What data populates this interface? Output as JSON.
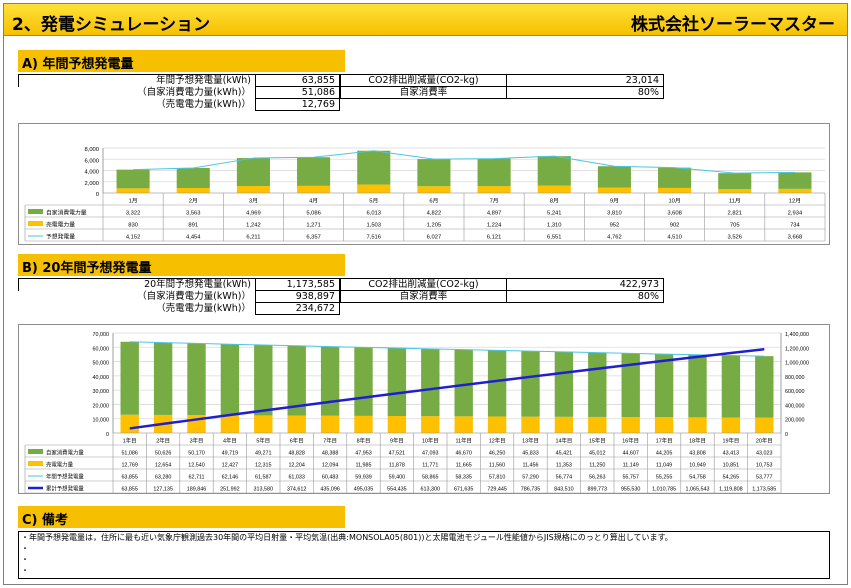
{
  "header": {
    "title": "2、発電シミュレーション",
    "company": "株式会社ソーラーマスター"
  },
  "section_a": {
    "label": "A) 年間予想発電量",
    "rows": [
      {
        "label": "年間予想発電量(kWh)",
        "value": "63,855",
        "label2": "CO2排出削減量(CO2-kg)",
        "value2": "23,014"
      },
      {
        "label": "（自家消費電力量(kWh)）",
        "value": "51,086",
        "label2": "自家消費率",
        "value2": "80%"
      },
      {
        "label": "（売電電力量(kWh)）",
        "value": "12,769"
      }
    ]
  },
  "section_b": {
    "label": "B) 20年間予想発電量",
    "rows": [
      {
        "label": "20年間予想発電量(kWh)",
        "value": "1,173,585",
        "label2": "CO2排出削減量(CO2-kg)",
        "value2": "422,973"
      },
      {
        "label": "（自家消費電力量(kWh)）",
        "value": "938,897",
        "label2": "自家消費率",
        "value2": "80%"
      },
      {
        "label": "（売電電力量(kWh)）",
        "value": "234,672"
      }
    ]
  },
  "section_c": {
    "label": "C) 備考",
    "notes": [
      "・年間予想発電量は，住所に最も近い気象庁観測過去30年間の平均日射量・平均気温(出典:MONSOLA05(801))と太陽電池モジュール性能値からJIS規格にのっとり算出しています。",
      "・",
      "・",
      "・"
    ]
  },
  "chart_data": [
    {
      "type": "bar",
      "categories": [
        "1月",
        "2月",
        "3月",
        "4月",
        "5月",
        "6月",
        "7月",
        "8月",
        "9月",
        "10月",
        "11月",
        "12月"
      ],
      "ylim": [
        0,
        8000
      ],
      "yticks": [
        "0",
        "2,000",
        "4,000",
        "6,000",
        "8,000"
      ],
      "series": [
        {
          "name": "自家消費電力量",
          "color": "#77ab43",
          "values": [
            3322,
            3563,
            4969,
            5086,
            6013,
            4822,
            4897,
            5241,
            3810,
            3608,
            2821,
            2934
          ],
          "labels": [
            "3,322",
            "3,563",
            "4,969",
            "5,086",
            "6,013",
            "4,822",
            "4,897",
            "5,241",
            "3,810",
            "3,608",
            "2,821",
            "2,934"
          ]
        },
        {
          "name": "売電電力量",
          "color": "#ffc000",
          "values": [
            830,
            891,
            1242,
            1271,
            1503,
            1205,
            1224,
            1310,
            952,
            902,
            705,
            734
          ],
          "labels": [
            "830",
            "891",
            "1,242",
            "1,271",
            "1,503",
            "1,205",
            "1,224",
            "1,310",
            "952",
            "902",
            "705",
            "734"
          ]
        },
        {
          "name": "予想発電量",
          "color": "#4bc6e0",
          "values": [
            4152,
            4454,
            6211,
            6357,
            7516,
            6027,
            6121,
            6551,
            4762,
            4510,
            3526,
            3668
          ],
          "labels": [
            "4,152",
            "4,454",
            "6,211",
            "6,357",
            "7,516",
            "6,027",
            "6,121",
            "6,551",
            "4,762",
            "4,510",
            "3,526",
            "3,668"
          ]
        }
      ]
    },
    {
      "type": "bar",
      "categories": [
        "1年目",
        "2年目",
        "3年目",
        "4年目",
        "5年目",
        "6年目",
        "7年目",
        "8年目",
        "9年目",
        "10年目",
        "11年目",
        "12年目",
        "13年目",
        "14年目",
        "15年目",
        "16年目",
        "17年目",
        "18年目",
        "19年目",
        "20年目"
      ],
      "ylim": [
        0,
        70000
      ],
      "y2lim": [
        0,
        1400000
      ],
      "yticks": [
        "0",
        "10,000",
        "20,000",
        "30,000",
        "40,000",
        "50,000",
        "60,000",
        "70,000"
      ],
      "y2ticks": [
        "0",
        "200,000",
        "400,000",
        "600,000",
        "800,000",
        "1,000,000",
        "1,200,000",
        "1,400,000"
      ],
      "series": [
        {
          "name": "自家消費電力量",
          "color": "#77ab43",
          "values": [
            51086,
            50626,
            50170,
            49719,
            49271,
            48828,
            48388,
            47953,
            47521,
            47093,
            46670,
            46250,
            45833,
            45421,
            45012,
            44607,
            44205,
            43808,
            43413,
            43023
          ],
          "labels": [
            "51,086",
            "50,626",
            "50,170",
            "49,719",
            "49,271",
            "48,828",
            "48,388",
            "47,953",
            "47,521",
            "47,093",
            "46,670",
            "46,250",
            "45,833",
            "45,421",
            "45,012",
            "44,607",
            "44,205",
            "43,808",
            "43,413",
            "43,023"
          ]
        },
        {
          "name": "売電電力量",
          "color": "#ffc000",
          "values": [
            12769,
            12654,
            12540,
            12427,
            12315,
            12204,
            12094,
            11985,
            11878,
            11771,
            11665,
            11560,
            11456,
            11353,
            11250,
            11149,
            11049,
            10949,
            10851,
            10753
          ],
          "labels": [
            "12,769",
            "12,654",
            "12,540",
            "12,427",
            "12,315",
            "12,204",
            "12,094",
            "11,985",
            "11,878",
            "11,771",
            "11,665",
            "11,560",
            "11,456",
            "11,353",
            "11,250",
            "11,149",
            "11,049",
            "10,949",
            "10,851",
            "10,753"
          ]
        },
        {
          "name": "年間予想発電量",
          "color": "#4bc6e0",
          "values": [
            63855,
            63280,
            62711,
            62146,
            61587,
            61033,
            60483,
            59939,
            59400,
            58865,
            58335,
            57810,
            57290,
            56774,
            56263,
            55757,
            55255,
            54758,
            54265,
            53777
          ],
          "labels": [
            "63,855",
            "63,280",
            "62,711",
            "62,146",
            "61,587",
            "61,033",
            "60,483",
            "59,939",
            "59,400",
            "58,865",
            "58,335",
            "57,810",
            "57,290",
            "56,774",
            "56,263",
            "55,757",
            "55,255",
            "54,758",
            "54,265",
            "53,777"
          ]
        },
        {
          "name": "累計予想発電量",
          "color": "#1f1fd1",
          "axis": "right",
          "values": [
            63855,
            127135,
            189846,
            251992,
            313580,
            374612,
            435096,
            495035,
            554435,
            613300,
            671635,
            729445,
            786735,
            843510,
            899773,
            955530,
            1010785,
            1065543,
            1119808,
            1173585
          ],
          "labels": [
            "63,855",
            "127,135",
            "189,846",
            "251,992",
            "313,580",
            "374,612",
            "435,096",
            "495,035",
            "554,435",
            "613,300",
            "671,635",
            "729,445",
            "786,735",
            "843,510",
            "899,773",
            "955,530",
            "1,010,785",
            "1,065,543",
            "1,119,808",
            "1,173,585"
          ]
        }
      ]
    }
  ]
}
